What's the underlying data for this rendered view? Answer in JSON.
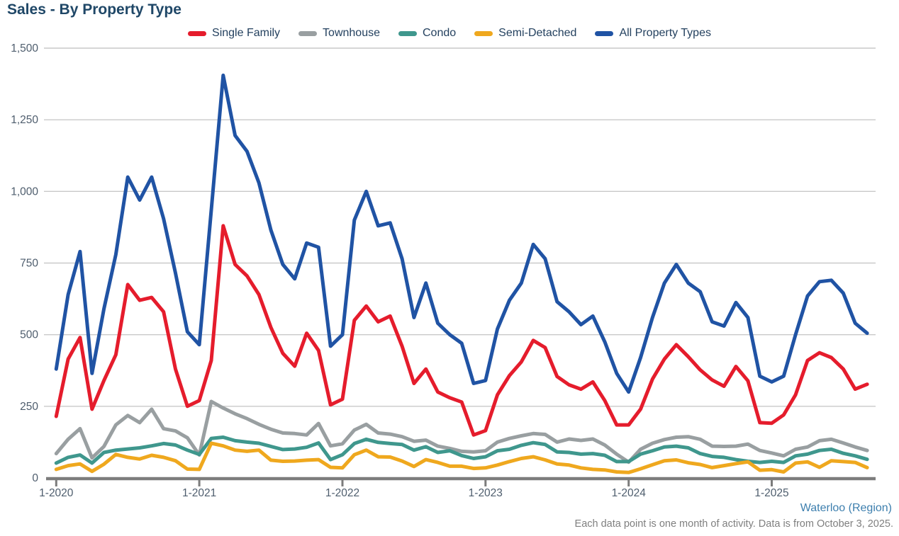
{
  "header": {
    "title": "Sales - By Property Type"
  },
  "footer": {
    "region": "Waterloo (Region)",
    "note": "Each data point is one month of activity. Data is from October 3, 2025."
  },
  "colors": {
    "title_text": "#1f4767",
    "legend_text": "#24415f",
    "axis_text": "#4e5d6d",
    "gridline": "#c9c9c9",
    "axis_line": "#7c7c7c",
    "region_link": "#3d7fae",
    "note_text": "#7f7f7f"
  },
  "chart_data": {
    "type": "line",
    "title": "Sales - By Property Type",
    "xlabel": "",
    "ylabel": "",
    "ylim": [
      0,
      1500
    ],
    "y_ticks": [
      0,
      250,
      500,
      750,
      1000,
      1250,
      1500
    ],
    "grid": true,
    "legend_position": "top",
    "n_points": 69,
    "x_start_label": "1-2020",
    "x_tick_labels": [
      "1-2020",
      "1-2021",
      "1-2022",
      "1-2023",
      "1-2024",
      "1-2025"
    ],
    "x_tick_indices": [
      0,
      12,
      24,
      36,
      48,
      60
    ],
    "series": [
      {
        "name": "Single Family",
        "color": "#e51c2c",
        "values": [
          215,
          415,
          490,
          240,
          340,
          430,
          675,
          620,
          630,
          580,
          380,
          250,
          270,
          410,
          880,
          745,
          705,
          640,
          525,
          435,
          390,
          505,
          445,
          255,
          275,
          550,
          600,
          545,
          565,
          460,
          330,
          380,
          300,
          280,
          265,
          150,
          165,
          290,
          357,
          405,
          480,
          455,
          354,
          325,
          310,
          335,
          270,
          185,
          185,
          240,
          345,
          415,
          465,
          423,
          377,
          342,
          320,
          389,
          339,
          193,
          191,
          220,
          290,
          410,
          437,
          420,
          380,
          310,
          327
        ]
      },
      {
        "name": "Townhouse",
        "color": "#999fa1",
        "values": [
          85,
          135,
          172,
          70,
          110,
          185,
          218,
          193,
          240,
          172,
          164,
          140,
          80,
          267,
          244,
          224,
          207,
          187,
          170,
          157,
          155,
          150,
          190,
          112,
          119,
          167,
          187,
          157,
          153,
          144,
          128,
          132,
          111,
          103,
          93,
          91,
          95,
          125,
          138,
          147,
          155,
          152,
          125,
          136,
          131,
          136,
          115,
          83,
          55,
          100,
          121,
          134,
          142,
          144,
          135,
          111,
          110,
          111,
          118,
          96,
          87,
          77,
          100,
          108,
          130,
          135,
          122,
          108,
          96
        ]
      },
      {
        "name": "Condo",
        "color": "#3f978d",
        "values": [
          52,
          72,
          80,
          52,
          89,
          97,
          101,
          105,
          112,
          120,
          115,
          97,
          82,
          138,
          142,
          130,
          125,
          121,
          110,
          99,
          101,
          107,
          122,
          64,
          81,
          120,
          135,
          124,
          120,
          117,
          97,
          109,
          89,
          95,
          78,
          68,
          74,
          95,
          100,
          114,
          123,
          117,
          91,
          89,
          83,
          85,
          79,
          57,
          57,
          83,
          95,
          108,
          111,
          105,
          85,
          75,
          72,
          64,
          58,
          54,
          58,
          54,
          77,
          83,
          96,
          100,
          86,
          77,
          65
        ]
      },
      {
        "name": "Semi-Detached",
        "color": "#efa81e",
        "values": [
          30,
          43,
          49,
          23,
          48,
          82,
          72,
          66,
          79,
          72,
          60,
          31,
          30,
          121,
          112,
          97,
          93,
          97,
          62,
          58,
          59,
          62,
          64,
          37,
          35,
          81,
          97,
          74,
          73,
          59,
          40,
          64,
          54,
          41,
          41,
          33,
          35,
          45,
          57,
          68,
          74,
          63,
          49,
          45,
          35,
          30,
          28,
          21,
          19,
          32,
          46,
          60,
          63,
          53,
          47,
          36,
          43,
          50,
          56,
          27,
          29,
          21,
          52,
          56,
          37,
          60,
          57,
          54,
          36
        ]
      },
      {
        "name": "All Property Types",
        "color": "#2053a4",
        "values": [
          380,
          640,
          790,
          365,
          590,
          780,
          1050,
          970,
          1050,
          905,
          715,
          510,
          465,
          935,
          1405,
          1195,
          1140,
          1030,
          865,
          745,
          695,
          820,
          805,
          460,
          500,
          900,
          1000,
          880,
          890,
          765,
          560,
          680,
          540,
          500,
          470,
          330,
          340,
          520,
          620,
          680,
          815,
          765,
          615,
          580,
          535,
          565,
          475,
          365,
          300,
          420,
          560,
          680,
          745,
          680,
          650,
          545,
          530,
          612,
          560,
          355,
          335,
          355,
          500,
          635,
          685,
          690,
          645,
          540,
          505
        ]
      }
    ]
  }
}
